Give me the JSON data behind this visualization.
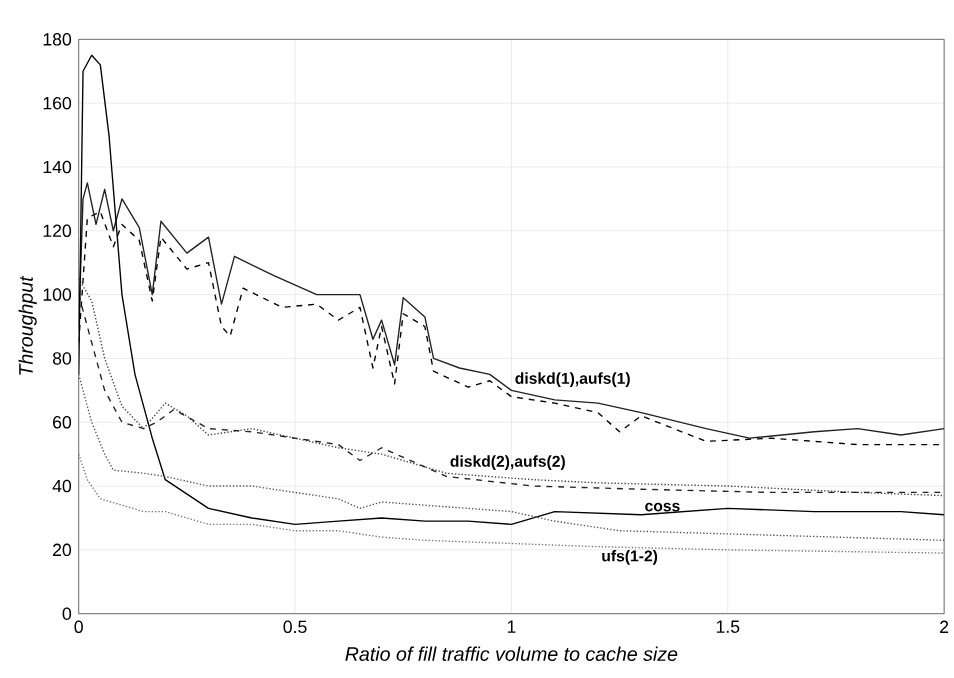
{
  "chart_data": {
    "type": "line",
    "xlabel": "Ratio of fill traffic volume to cache size",
    "ylabel": "Throughput",
    "xlim": [
      0,
      2
    ],
    "ylim": [
      0,
      180
    ],
    "xticks": [
      0,
      0.5,
      1,
      1.5,
      2
    ],
    "yticks": [
      0,
      20,
      40,
      60,
      80,
      100,
      120,
      140,
      160,
      180
    ],
    "grid": true,
    "marker": "none",
    "series": [
      {
        "color": "#222222",
        "line_style": "solid",
        "x": [
          0,
          0.01,
          0.02,
          0.04,
          0.06,
          0.08,
          0.1,
          0.14,
          0.17,
          0.19,
          0.25,
          0.3,
          0.33,
          0.36,
          0.45,
          0.55,
          0.65,
          0.68,
          0.7,
          0.73,
          0.75,
          0.8,
          0.82,
          0.88,
          0.95,
          1.0,
          1.1,
          1.2,
          1.3,
          1.45,
          1.55,
          1.7,
          1.8,
          1.9,
          2.0
        ],
        "values": [
          90,
          130,
          135,
          122,
          133,
          120,
          130,
          121,
          100,
          123,
          113,
          118,
          97,
          112,
          106,
          100,
          100,
          86,
          92,
          78,
          99,
          93,
          80,
          77,
          75,
          70,
          67,
          66,
          63,
          58,
          55,
          57,
          58,
          56,
          58
        ]
      },
      {
        "color": "#000000",
        "line_style": "dashed",
        "x": [
          0,
          0.02,
          0.05,
          0.08,
          0.1,
          0.14,
          0.17,
          0.19,
          0.25,
          0.3,
          0.33,
          0.35,
          0.38,
          0.47,
          0.55,
          0.6,
          0.65,
          0.68,
          0.7,
          0.73,
          0.75,
          0.8,
          0.82,
          0.9,
          0.95,
          1.0,
          1.1,
          1.2,
          1.25,
          1.3,
          1.45,
          1.6,
          1.8,
          2.0
        ],
        "values": [
          85,
          124,
          126,
          115,
          122,
          117,
          98,
          118,
          108,
          110,
          90,
          87,
          102,
          96,
          97,
          92,
          96,
          77,
          90,
          72,
          94,
          90,
          76,
          71,
          73,
          68,
          66,
          63,
          57,
          62,
          54,
          55,
          53,
          53
        ]
      },
      {
        "color": "#444444",
        "line_style": "dotted",
        "x": [
          0,
          0.03,
          0.06,
          0.1,
          0.15,
          0.2,
          0.25,
          0.3,
          0.4,
          0.5,
          0.6,
          0.7,
          0.8,
          0.85,
          1.05,
          1.2,
          1.5,
          1.8,
          2.0
        ],
        "values": [
          105,
          98,
          80,
          65,
          58,
          66,
          62,
          56,
          58,
          55,
          52,
          50,
          46,
          44,
          42,
          41,
          40,
          38,
          37
        ]
      },
      {
        "color": "#222222",
        "line_style": "dashed",
        "x": [
          0,
          0.03,
          0.06,
          0.1,
          0.15,
          0.18,
          0.22,
          0.3,
          0.4,
          0.5,
          0.6,
          0.65,
          0.7,
          0.8,
          0.85,
          1.05,
          1.3,
          1.6,
          2.0
        ],
        "values": [
          100,
          85,
          70,
          60,
          58,
          60,
          64,
          58,
          57,
          55,
          53,
          48,
          52,
          46,
          43,
          40,
          39,
          38,
          38
        ]
      },
      {
        "color": "#000000",
        "line_style": "solid",
        "x": [
          0,
          0.01,
          0.03,
          0.05,
          0.07,
          0.1,
          0.13,
          0.17,
          0.2,
          0.3,
          0.4,
          0.5,
          0.6,
          0.7,
          0.8,
          0.9,
          1.0,
          1.1,
          1.3,
          1.5,
          1.7,
          1.9,
          2.0
        ],
        "values": [
          75,
          170,
          175,
          172,
          150,
          100,
          75,
          55,
          42,
          33,
          30,
          28,
          29,
          30,
          29,
          29,
          28,
          32,
          31,
          33,
          32,
          32,
          31
        ]
      },
      {
        "color": "#555555",
        "line_style": "dotted",
        "x": [
          0,
          0.03,
          0.06,
          0.08,
          0.15,
          0.2,
          0.3,
          0.4,
          0.5,
          0.6,
          0.65,
          0.7,
          0.8,
          1.0,
          1.1,
          1.25,
          1.5,
          2.0
        ],
        "values": [
          75,
          60,
          50,
          45,
          44,
          43,
          40,
          40,
          38,
          36,
          33,
          35,
          34,
          32,
          29,
          26,
          25,
          23
        ]
      },
      {
        "color": "#777777",
        "line_style": "dotted",
        "x": [
          0,
          0.02,
          0.05,
          0.1,
          0.15,
          0.2,
          0.25,
          0.3,
          0.4,
          0.5,
          0.6,
          0.7,
          0.8,
          1.0,
          1.2,
          1.5,
          2.0
        ],
        "values": [
          50,
          42,
          36,
          34,
          32,
          32,
          30,
          28,
          28,
          26,
          26,
          24,
          23,
          22,
          21,
          20,
          19
        ]
      }
    ],
    "annotations": [
      {
        "text": "diskd(1),aufs(1)",
        "x": 1.0,
        "y": 70
      },
      {
        "text": "diskd(2),aufs(2)",
        "x": 0.85,
        "y": 44
      },
      {
        "text": "coss",
        "x": 1.3,
        "y": 31
      },
      {
        "text": "ufs(1-2)",
        "x": 1.2,
        "y": 21
      }
    ]
  }
}
